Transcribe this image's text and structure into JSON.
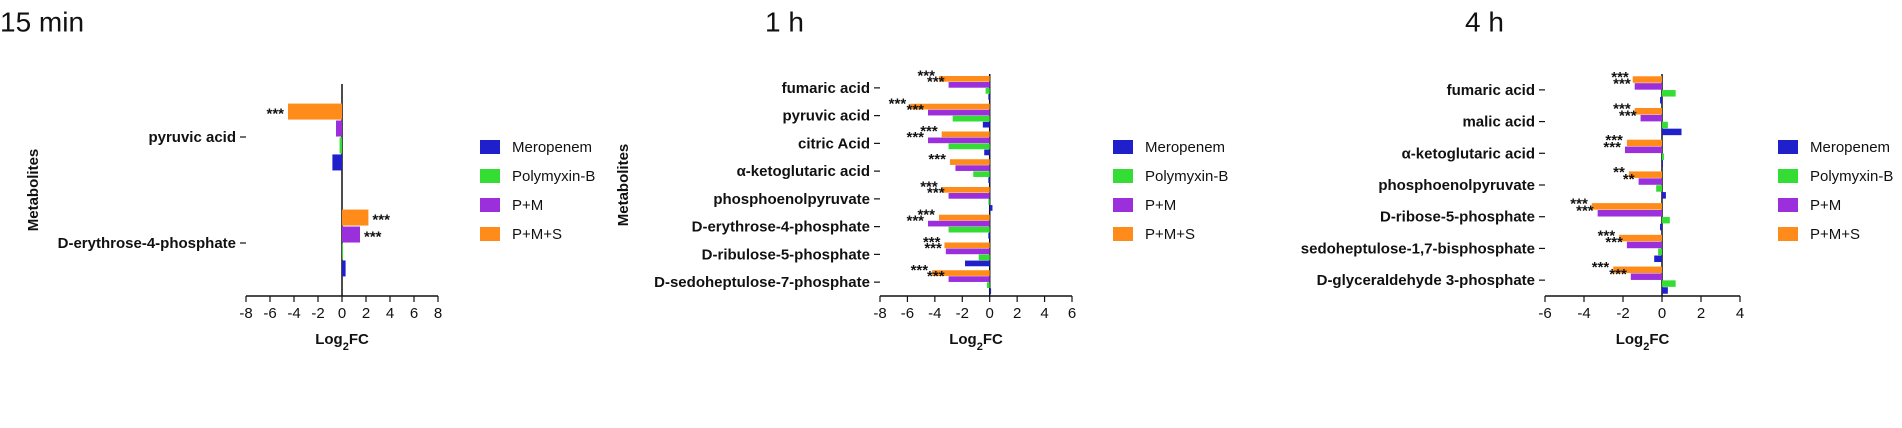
{
  "chart_data": [
    {
      "type": "bar",
      "orientation": "horizontal",
      "title": "15 min",
      "ylabel": "Metabolites",
      "xlabel": {
        "base": "Log",
        "sub": "2",
        "rest": "FC"
      },
      "xlim": [
        -8,
        8
      ],
      "xticks": [
        "-8",
        "-6",
        "-4",
        "-2",
        "0",
        "2",
        "4",
        "6",
        "8"
      ],
      "grid": false,
      "legend_position": "right",
      "categories": [
        "pyruvic acid",
        "D-erythrose-4-phosphate"
      ],
      "series": [
        {
          "name": "Meropenem",
          "color": "#1f1fcc",
          "values": [
            -0.8,
            0.3
          ],
          "sig": [
            "",
            ""
          ]
        },
        {
          "name": "Polymyxin-B",
          "color": "#33dd33",
          "values": [
            -0.2,
            0.05
          ],
          "sig": [
            "",
            ""
          ]
        },
        {
          "name": "P+M",
          "color": "#9b2fdc",
          "values": [
            -0.5,
            1.5
          ],
          "sig": [
            "",
            "***"
          ]
        },
        {
          "name": "P+M+S",
          "color": "#ff8c1a",
          "values": [
            -4.5,
            2.2
          ],
          "sig": [
            "***",
            "***"
          ]
        }
      ]
    },
    {
      "type": "bar",
      "orientation": "horizontal",
      "title": "1 h",
      "ylabel": "Metabolites",
      "xlabel": {
        "base": "Log",
        "sub": "2",
        "rest": "FC"
      },
      "xlim": [
        -8,
        6
      ],
      "xticks": [
        "-8",
        "-6",
        "-4",
        "-2",
        "0",
        "2",
        "4",
        "6"
      ],
      "grid": false,
      "legend_position": "right",
      "categories": [
        "fumaric acid",
        "pyruvic acid",
        "citric Acid",
        "α-ketoglutaric acid",
        "phosphoenolpyruvate",
        "D-erythrose-4-phosphate",
        "D-ribulose-5-phosphate",
        "D-sedoheptulose-7-phosphate"
      ],
      "series": [
        {
          "name": "Meropenem",
          "color": "#1f1fcc",
          "values": [
            -0.1,
            -0.5,
            -0.4,
            -0.1,
            0.2,
            -0.1,
            -1.8,
            0.1
          ],
          "sig": [
            "",
            "",
            "",
            "",
            "",
            "",
            "",
            ""
          ]
        },
        {
          "name": "Polymyxin-B",
          "color": "#33dd33",
          "values": [
            -0.3,
            -2.7,
            -3.0,
            -1.2,
            -0.1,
            -3.0,
            -0.8,
            -0.2
          ],
          "sig": [
            "",
            "",
            "",
            "",
            "",
            "",
            "",
            ""
          ]
        },
        {
          "name": "P+M",
          "color": "#9b2fdc",
          "values": [
            -3.0,
            -4.5,
            -4.5,
            -2.5,
            -3.0,
            -4.5,
            -3.2,
            -3.0
          ],
          "sig": [
            "***",
            "***",
            "***",
            "",
            "***",
            "***",
            "***",
            "***"
          ]
        },
        {
          "name": "P+M+S",
          "color": "#ff8c1a",
          "values": [
            -3.7,
            -5.8,
            -3.5,
            -2.9,
            -3.5,
            -3.7,
            -3.3,
            -4.2
          ],
          "sig": [
            "***",
            "***",
            "***",
            "***",
            "***",
            "***",
            "***",
            "***"
          ]
        }
      ]
    },
    {
      "type": "bar",
      "orientation": "horizontal",
      "title": "4 h",
      "ylabel": "",
      "xlabel": {
        "base": "Log",
        "sub": "2",
        "rest": "FC"
      },
      "xlim": [
        -6,
        4
      ],
      "xticks": [
        "-6",
        "-4",
        "-2",
        "0",
        "2",
        "4"
      ],
      "grid": false,
      "legend_position": "right",
      "categories": [
        "fumaric acid",
        "malic acid",
        "α-ketoglutaric acid",
        "phosphoenolpyruvate",
        "D-ribose-5-phosphate",
        "sedoheptulose-1,7-bisphosphate",
        "D-glyceraldehyde 3-phosphate"
      ],
      "series": [
        {
          "name": "Meropenem",
          "color": "#1f1fcc",
          "values": [
            -0.1,
            1.0,
            0.05,
            0.2,
            -0.1,
            -0.4,
            0.3
          ],
          "sig": [
            "",
            "",
            "",
            "",
            "",
            "",
            ""
          ]
        },
        {
          "name": "Polymyxin-B",
          "color": "#33dd33",
          "values": [
            0.7,
            0.3,
            0.1,
            -0.3,
            0.4,
            -0.2,
            0.7
          ],
          "sig": [
            "",
            "",
            "",
            "",
            "",
            "",
            ""
          ]
        },
        {
          "name": "P+M",
          "color": "#9b2fdc",
          "values": [
            -1.4,
            -1.1,
            -1.9,
            -1.2,
            -3.3,
            -1.8,
            -1.6
          ],
          "sig": [
            "***",
            "***",
            "***",
            "**",
            "***",
            "***",
            "***"
          ]
        },
        {
          "name": "P+M+S",
          "color": "#ff8c1a",
          "values": [
            -1.5,
            -1.4,
            -1.8,
            -1.7,
            -3.6,
            -2.2,
            -2.5
          ],
          "sig": [
            "***",
            "***",
            "***",
            "**",
            "***",
            "***",
            "***"
          ]
        }
      ]
    }
  ]
}
